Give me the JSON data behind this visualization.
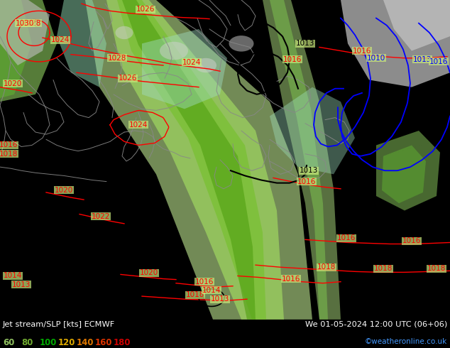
{
  "title_left": "Jet stream/SLP [kts] ECMWF",
  "title_right": "We 01-05-2024 12:00 UTC (06+06)",
  "credit": "©weatheronline.co.uk",
  "legend_values": [
    "60",
    "80",
    "100",
    "120",
    "140",
    "160",
    "180"
  ],
  "legend_colors": [
    "#90c060",
    "#70aa30",
    "#00aa00",
    "#ddaa00",
    "#dd7700",
    "#dd3300",
    "#cc0000"
  ],
  "bg_color": "#000000",
  "map_land_color": "#c8e87a",
  "map_sea_color": "#c8c8c8",
  "map_jet_light": "#b0e080",
  "map_jet_mid": "#80cc50",
  "map_jet_dark": "#40a020",
  "map_jet_darkest": "#206010",
  "map_teal": "#90d0b0",
  "map_pale": "#d8f0b8",
  "red_isobar": "#ff0000",
  "blue_isobar": "#0000dd",
  "black_isobar": "#000000",
  "figsize": [
    6.34,
    4.9
  ],
  "dpi": 100
}
